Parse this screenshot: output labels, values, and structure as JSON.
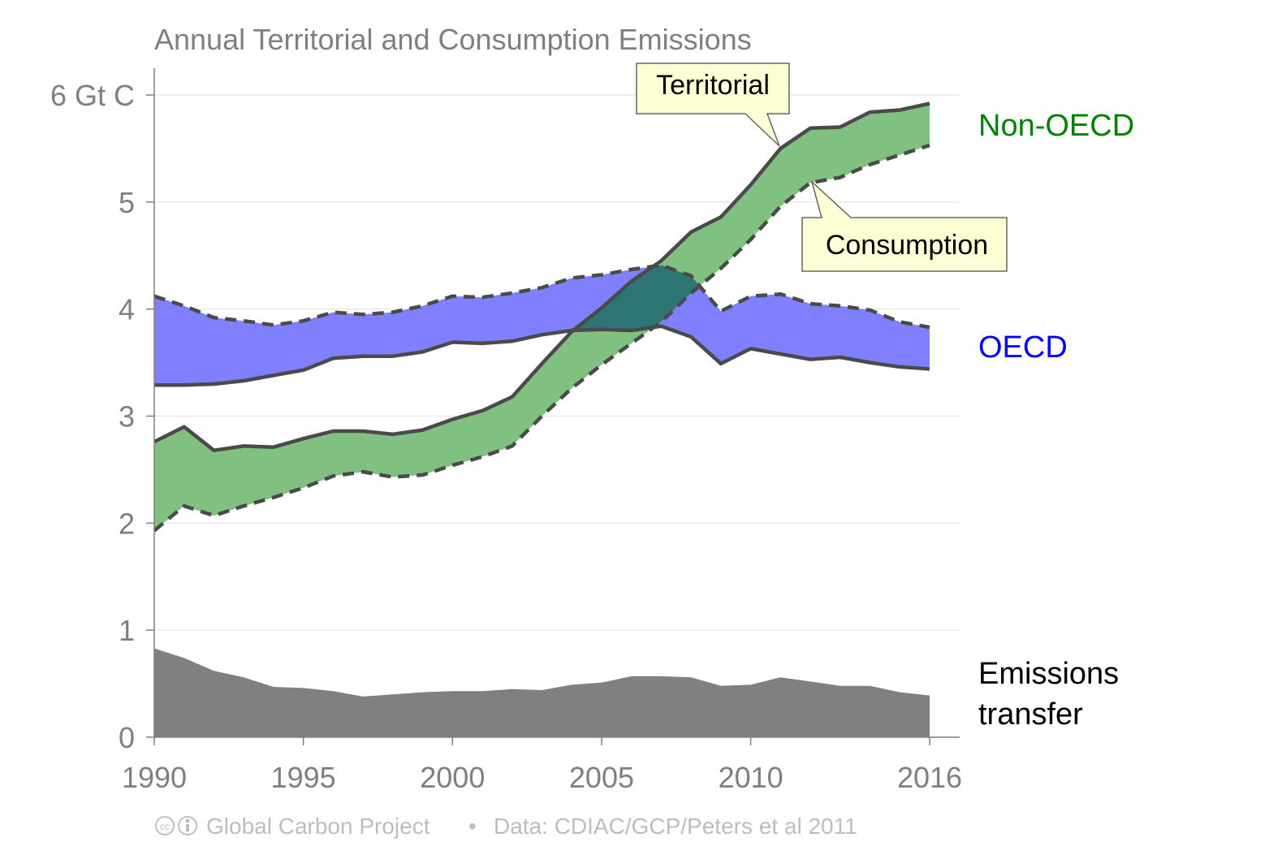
{
  "chart_data": {
    "type": "area",
    "title": "Annual Territorial and Consumption Emissions",
    "xlabel": "",
    "ylabel": "",
    "x": [
      1990,
      1991,
      1992,
      1993,
      1994,
      1995,
      1996,
      1997,
      1998,
      1999,
      2000,
      2001,
      2002,
      2003,
      2004,
      2005,
      2006,
      2007,
      2008,
      2009,
      2010,
      2011,
      2012,
      2013,
      2014,
      2015,
      2016
    ],
    "xlim": [
      1990,
      2016
    ],
    "ylim": [
      0,
      6
    ],
    "x_ticks": [
      {
        "value": 1990,
        "label": "1990"
      },
      {
        "value": 1995,
        "label": "1995"
      },
      {
        "value": 2000,
        "label": "2000"
      },
      {
        "value": 2005,
        "label": "2005"
      },
      {
        "value": 2010,
        "label": "2010"
      },
      {
        "value": 2016,
        "label": "2016"
      }
    ],
    "y_ticks": [
      {
        "value": 0,
        "label": "0"
      },
      {
        "value": 1,
        "label": "1"
      },
      {
        "value": 2,
        "label": "2"
      },
      {
        "value": 3,
        "label": "3"
      },
      {
        "value": 4,
        "label": "4"
      },
      {
        "value": 5,
        "label": "5"
      },
      {
        "value": 6,
        "label": "6 Gt C"
      }
    ],
    "grid": true,
    "series": [
      {
        "name": "OECD",
        "color": "#0000ff",
        "fill_color": "#8080ff",
        "territorial": [
          3.29,
          3.29,
          3.3,
          3.33,
          3.38,
          3.43,
          3.54,
          3.56,
          3.56,
          3.6,
          3.69,
          3.68,
          3.7,
          3.76,
          3.8,
          3.81,
          3.8,
          3.84,
          3.74,
          3.49,
          3.63,
          3.58,
          3.53,
          3.55,
          3.5,
          3.46,
          3.44
        ],
        "consumption": [
          4.12,
          4.03,
          3.92,
          3.89,
          3.85,
          3.89,
          3.97,
          3.95,
          3.97,
          4.03,
          4.12,
          4.11,
          4.15,
          4.2,
          4.29,
          4.32,
          4.37,
          4.41,
          4.31,
          3.98,
          4.12,
          4.14,
          4.05,
          4.03,
          3.99,
          3.88,
          3.83
        ]
      },
      {
        "name": "Non-OECD",
        "color": "#008000",
        "fill_color": "#80c080",
        "territorial": [
          2.76,
          2.9,
          2.68,
          2.72,
          2.71,
          2.79,
          2.86,
          2.86,
          2.83,
          2.87,
          2.97,
          3.05,
          3.18,
          3.49,
          3.79,
          4.01,
          4.26,
          4.45,
          4.72,
          4.86,
          5.16,
          5.5,
          5.69,
          5.7,
          5.84,
          5.86,
          5.92
        ],
        "consumption": [
          1.93,
          2.16,
          2.07,
          2.16,
          2.24,
          2.33,
          2.44,
          2.48,
          2.43,
          2.45,
          2.54,
          2.62,
          2.72,
          3.0,
          3.26,
          3.48,
          3.68,
          3.88,
          4.15,
          4.38,
          4.65,
          4.96,
          5.18,
          5.23,
          5.35,
          5.44,
          5.53
        ]
      },
      {
        "name": "Emissions transfer",
        "color": "#000000",
        "fill_color": "#808080",
        "values": [
          0.83,
          0.74,
          0.62,
          0.56,
          0.47,
          0.46,
          0.43,
          0.38,
          0.4,
          0.42,
          0.43,
          0.43,
          0.45,
          0.44,
          0.49,
          0.51,
          0.57,
          0.57,
          0.56,
          0.48,
          0.49,
          0.56,
          0.52,
          0.48,
          0.48,
          0.42,
          0.39
        ]
      }
    ],
    "series_labels": [
      {
        "text": "Non-OECD",
        "color": "#008000"
      },
      {
        "text": "OECD",
        "color": "#0000ff"
      },
      {
        "text": "Emissions",
        "color": "#000000"
      },
      {
        "text": "transfer",
        "color": "#000000"
      }
    ],
    "annotations": [
      {
        "text": "Territorial",
        "x": 2011,
        "y": 5.5
      },
      {
        "text": "Consumption",
        "x": 2012,
        "y": 5.18
      }
    ],
    "credit": {
      "source": "Global Carbon Project",
      "separator": "•",
      "data": "Data: CDIAC/GCP/Peters et al 2011"
    }
  }
}
